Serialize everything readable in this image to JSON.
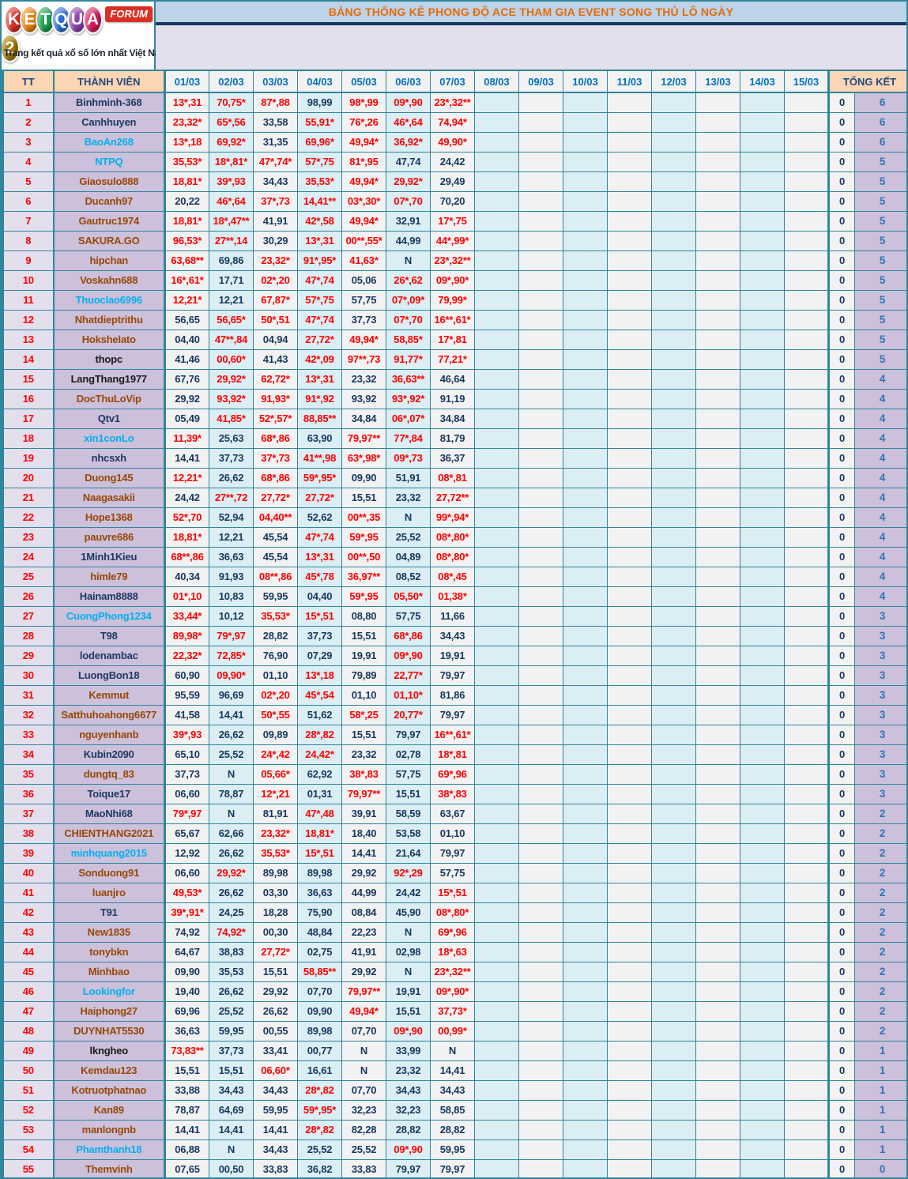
{
  "logo": {
    "letters": [
      {
        "ch": "K",
        "bg": "#D93025"
      },
      {
        "ch": "E",
        "bg": "#E8820C"
      },
      {
        "ch": "T",
        "bg": "#1E9E4F"
      },
      {
        "ch": "Q",
        "bg": "#2D6DD9"
      },
      {
        "ch": "U",
        "bg": "#8E44AD"
      },
      {
        "ch": "A",
        "bg": "#D81B60"
      },
      {
        "ch": "2",
        "bg": "#A67C00"
      }
    ],
    "badge": "FORUM",
    "tagline": "Trang kết quả xổ số lớn nhất Việt Nam"
  },
  "title": "BẢNG THỐNG KÊ PHONG ĐỘ ACE THAM GIA EVENT SONG THỦ LÔ  NGÀY",
  "columns": {
    "tt": "TT",
    "member": "THÀNH VIÊN",
    "dates": [
      "01/03",
      "02/03",
      "03/03",
      "04/03",
      "05/03",
      "06/03",
      "07/03",
      "08/03",
      "09/03",
      "10/03",
      "11/03",
      "12/03",
      "13/03",
      "14/03",
      "15/03"
    ],
    "total": "TỔNG KẾT"
  },
  "palette": {
    "teal_border": "#31859C",
    "navy_line": "#17375E",
    "title_orange": "#E36C0A",
    "title_bar_bg": "#BDD3E8",
    "band_bg": "#E4DFEC",
    "header_peach": "#FCD5B4",
    "header_date_blue": "#0070C0",
    "header_navy": "#1F497D",
    "cell_light": "#F2F2F2",
    "cell_blue": "#DAEEF3",
    "member_bg": "#CCC0DA",
    "tt_bg": "#E4DFEC",
    "hit_red": "#FF0000",
    "value_navy": "#17375E",
    "total_blue": "#2E75B6",
    "name_brown": "#974706",
    "name_cyan": "#00B0F0",
    "name_navy": "#1F3864",
    "name_black": "#1A1A1A"
  },
  "rows": [
    {
      "tt": 1,
      "member": "Binhminh-368",
      "name_color": "navy",
      "values": [
        "13*,31",
        "70,75*",
        "87*,88",
        "98,99",
        "98*,99",
        "09*,90",
        "23*,32**"
      ],
      "zero": "0",
      "total": "6"
    },
    {
      "tt": 2,
      "member": "Canhhuyen",
      "name_color": "navy",
      "values": [
        "23,32*",
        "65*,56",
        "33,58",
        "55,91*",
        "76*,26",
        "46*,64",
        "74,94*"
      ],
      "zero": "0",
      "total": "6"
    },
    {
      "tt": 3,
      "member": "BaoAn268",
      "name_color": "cyan",
      "values": [
        "13*,18",
        "69,92*",
        "31,35",
        "69,96*",
        "49,94*",
        "36,92*",
        "49,90*"
      ],
      "zero": "0",
      "total": "6"
    },
    {
      "tt": 4,
      "member": "NTPQ",
      "name_color": "cyan",
      "values": [
        "35,53*",
        "18*,81*",
        "47*,74*",
        "57*,75",
        "81*,95",
        "47,74",
        "24,42"
      ],
      "zero": "0",
      "total": "5"
    },
    {
      "tt": 5,
      "member": "Giaosulo888",
      "name_color": "brown",
      "values": [
        "18,81*",
        "39*,93",
        "34,43",
        "35,53*",
        "49,94*",
        "29,92*",
        "29,49"
      ],
      "zero": "0",
      "total": "5"
    },
    {
      "tt": 6,
      "member": "Ducanh97",
      "name_color": "brown",
      "values": [
        "20,22",
        "46*,64",
        "37*,73",
        "14,41**",
        "03*,30*",
        "07*,70",
        "70,20"
      ],
      "zero": "0",
      "total": "5"
    },
    {
      "tt": 7,
      "member": "Gautruc1974",
      "name_color": "brown",
      "values": [
        "18,81*",
        "18*,47**",
        "41,91",
        "42*,58",
        "49,94*",
        "32,91",
        "17*,75"
      ],
      "zero": "0",
      "total": "5"
    },
    {
      "tt": 8,
      "member": "SAKURA.GO",
      "name_color": "brown",
      "values": [
        "96,53*",
        "27**,14",
        "30,29",
        "13*,31",
        "00**,55*",
        "44,99",
        "44*,99*"
      ],
      "zero": "0",
      "total": "5"
    },
    {
      "tt": 9,
      "member": "hipchan",
      "name_color": "brown",
      "values": [
        "63,68**",
        "69,86",
        "23,32*",
        "91*,95*",
        "41,63*",
        "N",
        "23*,32**"
      ],
      "zero": "0",
      "total": "5"
    },
    {
      "tt": 10,
      "member": "Voskahn688",
      "name_color": "brown",
      "values": [
        "16*,61*",
        "17,71",
        "02*,20",
        "47*,74",
        "05,06",
        "26*,62",
        "09*,90*"
      ],
      "zero": "0",
      "total": "5"
    },
    {
      "tt": 11,
      "member": "Thuoclao6996",
      "name_color": "cyan",
      "values": [
        "12,21*",
        "12,21",
        "67,87*",
        "57*,75",
        "57,75",
        "07*,09*",
        "79,99*"
      ],
      "zero": "0",
      "total": "5"
    },
    {
      "tt": 12,
      "member": "Nhatdieptrithu",
      "name_color": "brown",
      "values": [
        "56,65",
        "56,65*",
        "50*,51",
        "47*,74",
        "37,73",
        "07*,70",
        "16**,61*"
      ],
      "zero": "0",
      "total": "5"
    },
    {
      "tt": 13,
      "member": "Hokshelato",
      "name_color": "brown",
      "values": [
        "04,40",
        "47**,84",
        "04,94",
        "27,72*",
        "49,94*",
        "58,85*",
        "17*,81"
      ],
      "zero": "0",
      "total": "5"
    },
    {
      "tt": 14,
      "member": "thopc",
      "name_color": "black",
      "values": [
        "41,46",
        "00,60*",
        "41,43",
        "42*,09",
        "97**,73",
        "91,77*",
        "77,21*"
      ],
      "zero": "0",
      "total": "5"
    },
    {
      "tt": 15,
      "member": "LangThang1977",
      "name_color": "black",
      "values": [
        "67,76",
        "29,92*",
        "62,72*",
        "13*,31",
        "23,32",
        "36,63**",
        "46,64"
      ],
      "zero": "0",
      "total": "4"
    },
    {
      "tt": 16,
      "member": "DocThuLoVip",
      "name_color": "brown",
      "values": [
        "29,92",
        "93,92*",
        "91,93*",
        "91*,92",
        "93,92",
        "93*,92*",
        "91,19"
      ],
      "zero": "0",
      "total": "4"
    },
    {
      "tt": 17,
      "member": "Qtv1",
      "name_color": "navy",
      "values": [
        "05,49",
        "41,85*",
        "52*,57*",
        "88,85**",
        "34,84",
        "06*,07*",
        "34,84"
      ],
      "zero": "0",
      "total": "4"
    },
    {
      "tt": 18,
      "member": "xin1conLo",
      "name_color": "cyan",
      "values": [
        "11,39*",
        "25,63",
        "68*,86",
        "63,90",
        "79,97**",
        "77*,84",
        "81,79"
      ],
      "zero": "0",
      "total": "4"
    },
    {
      "tt": 19,
      "member": "nhcsxh",
      "name_color": "navy",
      "values": [
        "14,41",
        "37,73",
        "37*,73",
        "41**,98",
        "63*,98*",
        "09*,73",
        "36,37"
      ],
      "zero": "0",
      "total": "4"
    },
    {
      "tt": 20,
      "member": "Duong145",
      "name_color": "brown",
      "values": [
        "12,21*",
        "26,62",
        "68*,86",
        "59*,95*",
        "09,90",
        "51,91",
        "08*,81"
      ],
      "zero": "0",
      "total": "4"
    },
    {
      "tt": 21,
      "member": "Naagasakii",
      "name_color": "brown",
      "values": [
        "24,42",
        "27**,72",
        "27,72*",
        "27,72*",
        "15,51",
        "23,32",
        "27,72**"
      ],
      "zero": "0",
      "total": "4"
    },
    {
      "tt": 22,
      "member": "Hope1368",
      "name_color": "brown",
      "values": [
        "52*,70",
        "52,94",
        "04,40**",
        "52,62",
        "00**,35",
        "N",
        "99*,94*"
      ],
      "zero": "0",
      "total": "4"
    },
    {
      "tt": 23,
      "member": "pauvre686",
      "name_color": "brown",
      "values": [
        "18,81*",
        "12,21",
        "45,54",
        "47*,74",
        "59*,95",
        "25,52",
        "08*,80*"
      ],
      "zero": "0",
      "total": "4"
    },
    {
      "tt": 24,
      "member": "1Minh1Kieu",
      "name_color": "navy",
      "values": [
        "68**,86",
        "36,63",
        "45,54",
        "13*,31",
        "00**,50",
        "04,89",
        "08*,80*"
      ],
      "zero": "0",
      "total": "4"
    },
    {
      "tt": 25,
      "member": "himle79",
      "name_color": "brown",
      "values": [
        "40,34",
        "91,93",
        "08**,86",
        "45*,78",
        "36,97**",
        "08,52",
        "08*,45"
      ],
      "zero": "0",
      "total": "4"
    },
    {
      "tt": 26,
      "member": "Hainam8888",
      "name_color": "navy",
      "values": [
        "01*,10",
        "10,83",
        "59,95",
        "04,40",
        "59*,95",
        "05,50*",
        "01,38*"
      ],
      "zero": "0",
      "total": "4"
    },
    {
      "tt": 27,
      "member": "CuongPhong1234",
      "name_color": "cyan",
      "values": [
        "33,44*",
        "10,12",
        "35,53*",
        "15*,51",
        "08,80",
        "57,75",
        "11,66"
      ],
      "zero": "0",
      "total": "3"
    },
    {
      "tt": 28,
      "member": "T98",
      "name_color": "navy",
      "values": [
        "89,98*",
        "79*,97",
        "28,82",
        "37,73",
        "15,51",
        "68*,86",
        "34,43"
      ],
      "zero": "0",
      "total": "3"
    },
    {
      "tt": 29,
      "member": "lodenambac",
      "name_color": "navy",
      "values": [
        "22,32*",
        "72,85*",
        "76,90",
        "07,29",
        "19,91",
        "09*,90",
        "19,91"
      ],
      "zero": "0",
      "total": "3"
    },
    {
      "tt": 30,
      "member": "LuongBon18",
      "name_color": "navy",
      "values": [
        "60,90",
        "09,90*",
        "01,10",
        "13*,18",
        "79,89",
        "22,77*",
        "79,97"
      ],
      "zero": "0",
      "total": "3"
    },
    {
      "tt": 31,
      "member": "Kemmut",
      "name_color": "brown",
      "values": [
        "95,59",
        "96,69",
        "02*,20",
        "45*,54",
        "01,10",
        "01,10*",
        "81,86"
      ],
      "zero": "0",
      "total": "3"
    },
    {
      "tt": 32,
      "member": "Satthuhoahong6677",
      "name_color": "brown",
      "values": [
        "41,58",
        "14,41",
        "50*,55",
        "51,62",
        "58*,25",
        "20,77*",
        "79,97"
      ],
      "zero": "0",
      "total": "3"
    },
    {
      "tt": 33,
      "member": "nguyenhanb",
      "name_color": "brown",
      "values": [
        "39*,93",
        "26,62",
        "09,89",
        "28*,82",
        "15,51",
        "79,97",
        "16**,61*"
      ],
      "zero": "0",
      "total": "3"
    },
    {
      "tt": 34,
      "member": "Kubin2090",
      "name_color": "navy",
      "values": [
        "65,10",
        "25,52",
        "24*,42",
        "24,42*",
        "23,32",
        "02,78",
        "18*,81"
      ],
      "zero": "0",
      "total": "3"
    },
    {
      "tt": 35,
      "member": "dungtq_83",
      "name_color": "brown",
      "values": [
        "37,73",
        "N",
        "05,66*",
        "62,92",
        "38*,83",
        "57,75",
        "69*,96"
      ],
      "zero": "0",
      "total": "3"
    },
    {
      "tt": 36,
      "member": "Toique17",
      "name_color": "navy",
      "values": [
        "06,60",
        "78,87",
        "12*,21",
        "01,31",
        "79,97**",
        "15,51",
        "38*,83"
      ],
      "zero": "0",
      "total": "3"
    },
    {
      "tt": 37,
      "member": "MaoNhi68",
      "name_color": "navy",
      "values": [
        "79*,97",
        "N",
        "81,91",
        "47*,48",
        "39,91",
        "58,59",
        "63,67"
      ],
      "zero": "0",
      "total": "2"
    },
    {
      "tt": 38,
      "member": "CHIENTHANG2021",
      "name_color": "brown",
      "values": [
        "65,67",
        "62,66",
        "23,32*",
        "18,81*",
        "18,40",
        "53,58",
        "01,10"
      ],
      "zero": "0",
      "total": "2"
    },
    {
      "tt": 39,
      "member": "minhquang2015",
      "name_color": "cyan",
      "values": [
        "12,92",
        "26,62",
        "35,53*",
        "15*,51",
        "14,41",
        "21,64",
        "79,97"
      ],
      "zero": "0",
      "total": "2"
    },
    {
      "tt": 40,
      "member": "Sonduong91",
      "name_color": "brown",
      "values": [
        "06,60",
        "29,92*",
        "89,98",
        "89,98",
        "29,92",
        "92*,29",
        "57,75"
      ],
      "zero": "0",
      "total": "2"
    },
    {
      "tt": 41,
      "member": "luanjro",
      "name_color": "brown",
      "values": [
        "49,53*",
        "26,62",
        "03,30",
        "36,63",
        "44,99",
        "24,42",
        "15*,51"
      ],
      "zero": "0",
      "total": "2"
    },
    {
      "tt": 42,
      "member": "T91",
      "name_color": "navy",
      "values": [
        "39*,91*",
        "24,25",
        "18,28",
        "75,90",
        "08,84",
        "45,90",
        "08*,80*"
      ],
      "zero": "0",
      "total": "2"
    },
    {
      "tt": 43,
      "member": "New1835",
      "name_color": "brown",
      "values": [
        "74,92",
        "74,92*",
        "00,30",
        "48,84",
        "22,23",
        "N",
        "69*,96"
      ],
      "zero": "0",
      "total": "2"
    },
    {
      "tt": 44,
      "member": "tonybkn",
      "name_color": "brown",
      "values": [
        "64,67",
        "38,83",
        "27,72*",
        "02,75",
        "41,91",
        "02,98",
        "18*,63"
      ],
      "zero": "0",
      "total": "2"
    },
    {
      "tt": 45,
      "member": "Minhbao",
      "name_color": "brown",
      "values": [
        "09,90",
        "35,53",
        "15,51",
        "58,85**",
        "29,92",
        "N",
        "23*,32**"
      ],
      "zero": "0",
      "total": "2"
    },
    {
      "tt": 46,
      "member": "Lookingfor",
      "name_color": "cyan",
      "values": [
        "19,40",
        "26,62",
        "29,92",
        "07,70",
        "79,97**",
        "19,91",
        "09*,90*"
      ],
      "zero": "0",
      "total": "2"
    },
    {
      "tt": 47,
      "member": "Haiphong27",
      "name_color": "brown",
      "values": [
        "69,96",
        "25,52",
        "26,62",
        "09,90",
        "49,94*",
        "15,51",
        "37,73*"
      ],
      "zero": "0",
      "total": "2"
    },
    {
      "tt": 48,
      "member": "DUYNHAT5530",
      "name_color": "brown",
      "values": [
        "36,63",
        "59,95",
        "00,55",
        "89,98",
        "07,70",
        "09*,90",
        "00,99*"
      ],
      "zero": "0",
      "total": "2"
    },
    {
      "tt": 49,
      "member": "lkngheo",
      "name_color": "black",
      "values": [
        "73,83**",
        "37,73",
        "33,41",
        "00,77",
        "N",
        "33,99",
        "N"
      ],
      "zero": "0",
      "total": "1"
    },
    {
      "tt": 50,
      "member": "Kemdau123",
      "name_color": "brown",
      "values": [
        "15,51",
        "15,51",
        "06,60*",
        "16,61",
        "N",
        "23,32",
        "14,41"
      ],
      "zero": "0",
      "total": "1"
    },
    {
      "tt": 51,
      "member": "Kotruotphatnao",
      "name_color": "brown",
      "values": [
        "33,88",
        "34,43",
        "34,43",
        "28*,82",
        "07,70",
        "34,43",
        "34,43"
      ],
      "zero": "0",
      "total": "1"
    },
    {
      "tt": 52,
      "member": "Kan89",
      "name_color": "brown",
      "values": [
        "78,87",
        "64,69",
        "59,95",
        "59*,95*",
        "32,23",
        "32,23",
        "58,85"
      ],
      "zero": "0",
      "total": "1"
    },
    {
      "tt": 53,
      "member": "manlongnb",
      "name_color": "brown",
      "values": [
        "14,41",
        "14,41",
        "14,41",
        "28*,82",
        "82,28",
        "28,82",
        "28,82"
      ],
      "zero": "0",
      "total": "1"
    },
    {
      "tt": 54,
      "member": "Phamthanh18",
      "name_color": "cyan",
      "values": [
        "06,88",
        "N",
        "34,43",
        "25,52",
        "25,52",
        "09*,90",
        "59,95"
      ],
      "zero": "0",
      "total": "1"
    },
    {
      "tt": 55,
      "member": "Themvinh",
      "name_color": "brown",
      "values": [
        "07,65",
        "00,50",
        "33,83",
        "36,82",
        "33,83",
        "79,97",
        "79,97"
      ],
      "zero": "0",
      "total": "0"
    }
  ]
}
